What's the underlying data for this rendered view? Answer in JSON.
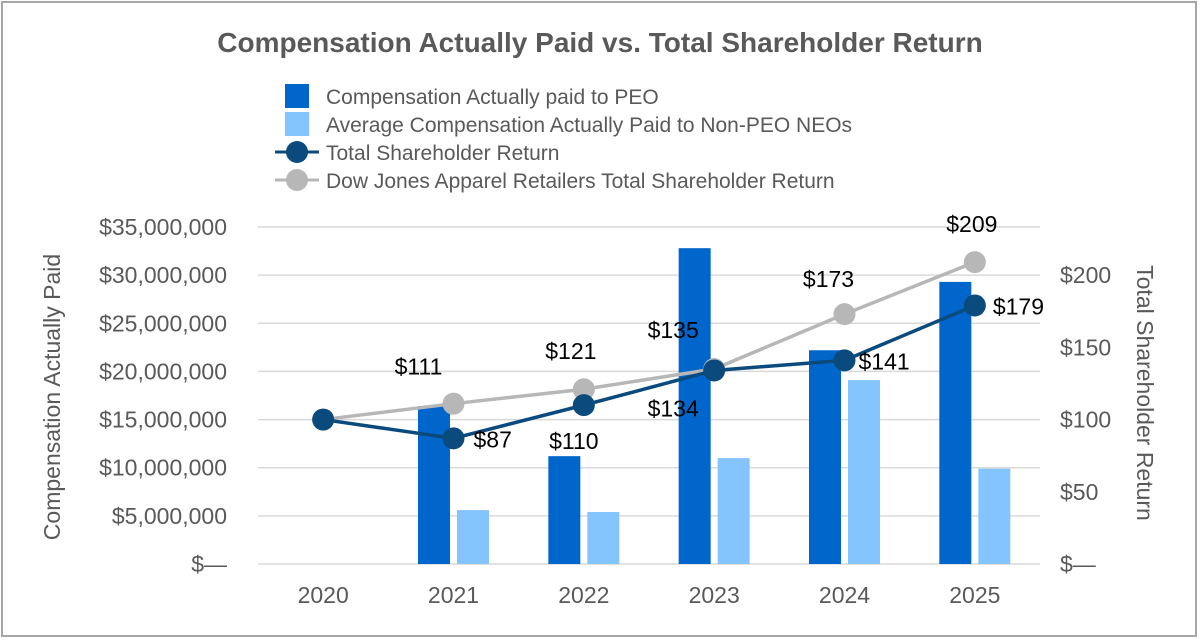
{
  "chart_data": {
    "type": "bar",
    "title": "Compensation Actually Paid vs. Total Shareholder Return",
    "categories": [
      "2020",
      "2021",
      "2022",
      "2023",
      "2024",
      "2025"
    ],
    "ylabel": "Compensation Actually Paid",
    "y2label": "Total Shareholder Return",
    "ylim": [
      0,
      35000000
    ],
    "y2lim": [
      0,
      233.33
    ],
    "yticks": [
      {
        "value": 0,
        "label": "$—"
      },
      {
        "value": 5000000,
        "label": "$5,000,000"
      },
      {
        "value": 10000000,
        "label": "$10,000,000"
      },
      {
        "value": 15000000,
        "label": "$15,000,000"
      },
      {
        "value": 20000000,
        "label": "$20,000,000"
      },
      {
        "value": 25000000,
        "label": "$25,000,000"
      },
      {
        "value": 30000000,
        "label": "$30,000,000"
      },
      {
        "value": 35000000,
        "label": "$35,000,000"
      }
    ],
    "y2ticks": [
      {
        "value": 0,
        "label": "$—"
      },
      {
        "value": 50,
        "label": "$50"
      },
      {
        "value": 100,
        "label": "$100"
      },
      {
        "value": 150,
        "label": "$150"
      },
      {
        "value": 200,
        "label": "$200"
      }
    ],
    "grid": true,
    "legend_position": "top",
    "series": [
      {
        "name": "Compensation Actually paid to PEO",
        "kind": "bar",
        "axis": "left",
        "color": "#0066cc",
        "values": [
          null,
          16400000,
          11200000,
          32800000,
          22200000,
          29300000
        ]
      },
      {
        "name": "Average Compensation Actually Paid to Non-PEO NEOs",
        "kind": "bar",
        "axis": "left",
        "color": "#85c5ff",
        "values": [
          null,
          5600000,
          5400000,
          11000000,
          19100000,
          9900000
        ]
      },
      {
        "name": "Total Shareholder Return",
        "kind": "line",
        "axis": "right",
        "color": "#0b4a7d",
        "values": [
          100,
          87,
          110,
          134,
          141,
          179
        ],
        "labels": [
          null,
          "$87",
          "$110",
          "$134",
          "$141",
          "$179"
        ]
      },
      {
        "name": "Dow Jones Apparel Retailers Total Shareholder Return",
        "kind": "line",
        "axis": "right",
        "color": "#b7b7b7",
        "values": [
          100,
          111,
          121,
          135,
          173,
          209
        ],
        "labels": [
          null,
          "$111",
          "$121",
          "$135",
          "$173",
          "$209"
        ]
      }
    ]
  }
}
